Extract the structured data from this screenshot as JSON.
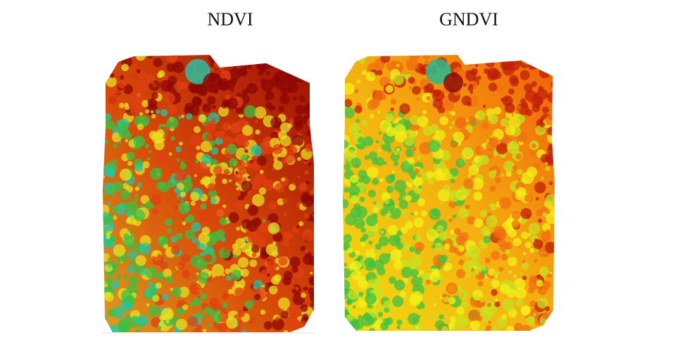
{
  "panels": [
    {
      "title": "NDVI"
    },
    {
      "title": "GNDVI"
    }
  ]
}
